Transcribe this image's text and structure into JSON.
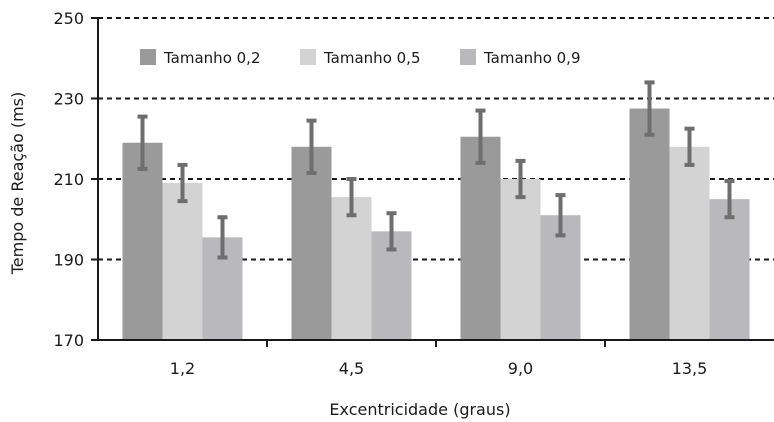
{
  "chart_data": {
    "type": "bar",
    "title": "",
    "xlabel": "Excentricidade (graus)",
    "ylabel": "Tempo de Reação (ms)",
    "ylim": [
      170,
      250
    ],
    "yticks": [
      "170",
      "190",
      "210",
      "230",
      "250"
    ],
    "grid": "dashed horizontal",
    "legend_position": "top",
    "categories": [
      "1,2",
      "4,5",
      "9,0",
      "13,5"
    ],
    "series": [
      {
        "name": "Tamanho 0,2",
        "color": "#9a9a9a",
        "values": [
          219,
          218,
          220.5,
          227.5
        ],
        "error": [
          6.5,
          6.5,
          6.5,
          6.5
        ]
      },
      {
        "name": "Tamanho 0,5",
        "color": "#d3d3d3",
        "values": [
          209,
          205.5,
          210,
          218
        ],
        "error": [
          4.5,
          4.5,
          4.5,
          4.5
        ]
      },
      {
        "name": "Tamanho 0,9",
        "color": "#b9b9bd",
        "values": [
          195.5,
          197,
          201,
          205
        ],
        "error": [
          5,
          4.5,
          5,
          4.5
        ]
      }
    ],
    "error_bar_color": "#6e6e6e"
  }
}
